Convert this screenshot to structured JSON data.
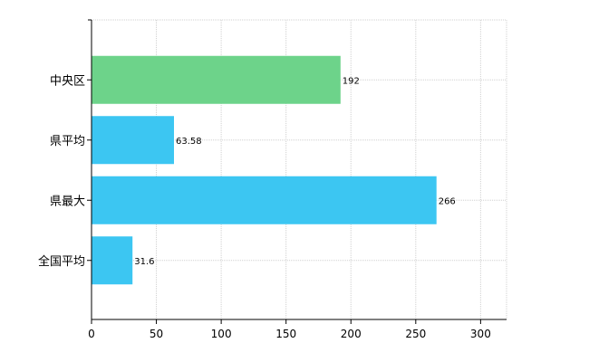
{
  "chart_data": {
    "type": "bar",
    "orientation": "horizontal",
    "categories": [
      "中央区",
      "県平均",
      "県最大",
      "全国平均"
    ],
    "values": [
      192,
      63.58,
      266,
      31.6
    ],
    "value_labels": [
      "192",
      "63.58",
      "266",
      "31.6"
    ],
    "bar_colors": [
      "#6dd38a",
      "#3cc6f2",
      "#3cc6f2",
      "#3cc6f2"
    ],
    "xlim": [
      0,
      320
    ],
    "xticks": [
      0,
      50,
      100,
      150,
      200,
      250,
      300
    ],
    "grid": "dashed",
    "title": "",
    "xlabel": "",
    "ylabel": ""
  }
}
